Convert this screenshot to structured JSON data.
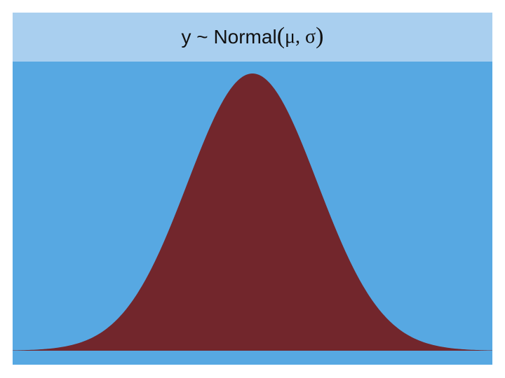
{
  "formula": {
    "lhs": "y ~ Normal",
    "open_paren": "(",
    "params": "μ, σ",
    "close_paren": ")"
  },
  "colors": {
    "header_bg": "#a9cfef",
    "plot_bg": "#57a8e2",
    "curve_fill": "#72262c"
  },
  "curve": {
    "shape": "normal-density",
    "mu": 0,
    "sigma": 1,
    "x_range": [
      -3.7,
      3.7
    ]
  }
}
